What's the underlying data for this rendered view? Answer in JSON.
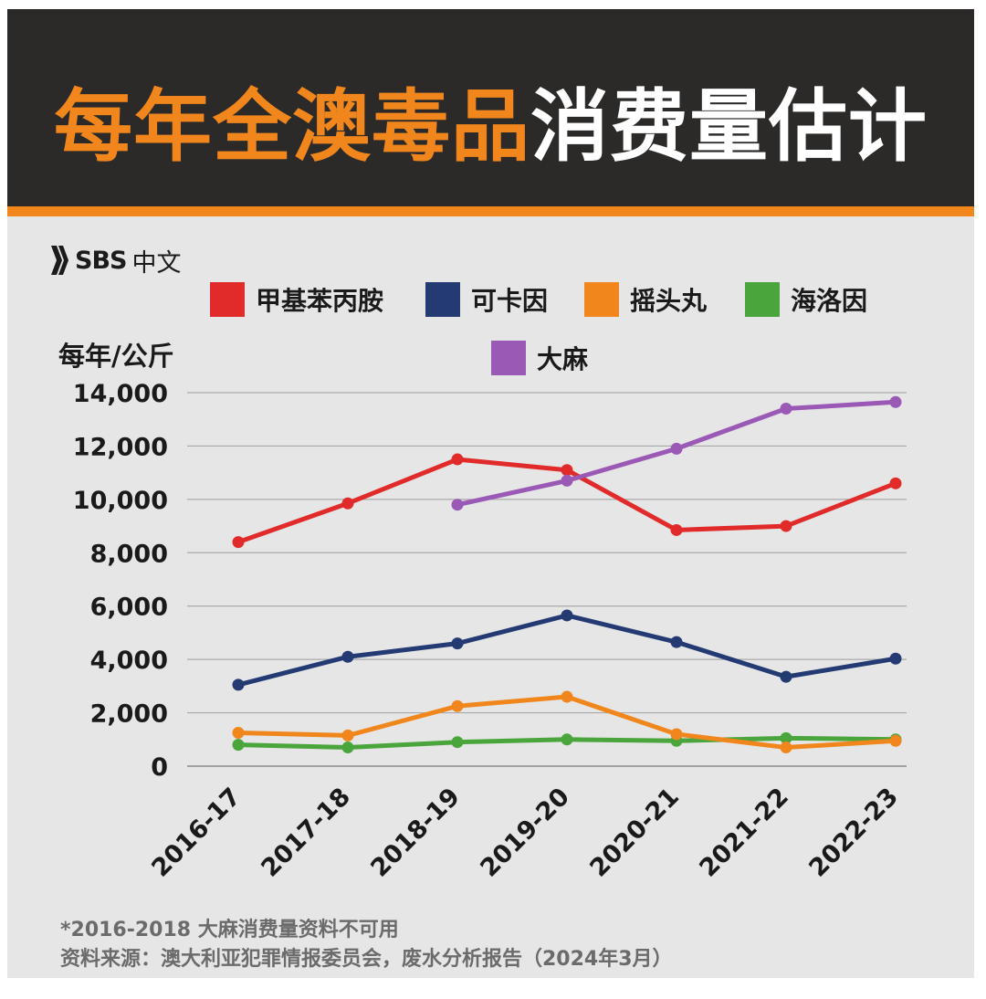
{
  "header": {
    "title_highlight": "每年全澳毒品",
    "title_rest": "消费量估计",
    "highlight_color": "#f0861c"
  },
  "logo": {
    "icon": "sbs-wave-icon",
    "brand": "SBS",
    "language": "中文"
  },
  "chart_data": {
    "type": "line",
    "title": "每年全澳毒品消费量估计",
    "ylabel": "每年/公斤",
    "xlabel": "",
    "categories": [
      "2016-17",
      "2017-18",
      "2018-19",
      "2019-20",
      "2020-21",
      "2021-22",
      "2022-23"
    ],
    "ylim": [
      0,
      14000
    ],
    "yticks": [
      0,
      2000,
      4000,
      6000,
      8000,
      10000,
      12000,
      14000
    ],
    "ytick_labels": [
      "0",
      "2,000",
      "4,000",
      "6,000",
      "8,000",
      "10,000",
      "12,000",
      "14,000"
    ],
    "grid": true,
    "legend_position": "top",
    "series": [
      {
        "name": "甲基苯丙胺",
        "color": "#e12b2b",
        "values": [
          8400,
          9850,
          11500,
          11100,
          8850,
          9000,
          10600
        ]
      },
      {
        "name": "可卡因",
        "color": "#243a73",
        "values": [
          3050,
          4100,
          4600,
          5650,
          4650,
          3350,
          4030
        ]
      },
      {
        "name": "摇头丸",
        "color": "#f0861c",
        "values": [
          1250,
          1150,
          2250,
          2600,
          1200,
          700,
          950
        ]
      },
      {
        "name": "海洛因",
        "color": "#4aa63c",
        "values": [
          800,
          700,
          900,
          1000,
          950,
          1050,
          1000
        ]
      },
      {
        "name": "大麻",
        "color": "#9b59b6",
        "values": [
          null,
          null,
          9800,
          10700,
          11900,
          13400,
          13650
        ]
      }
    ]
  },
  "footnotes": {
    "note": "*2016-2018 大麻消费量资料不可用",
    "source": "资料来源：澳大利亚犯罪情报委员会，废水分析报告（2024年3月）"
  }
}
